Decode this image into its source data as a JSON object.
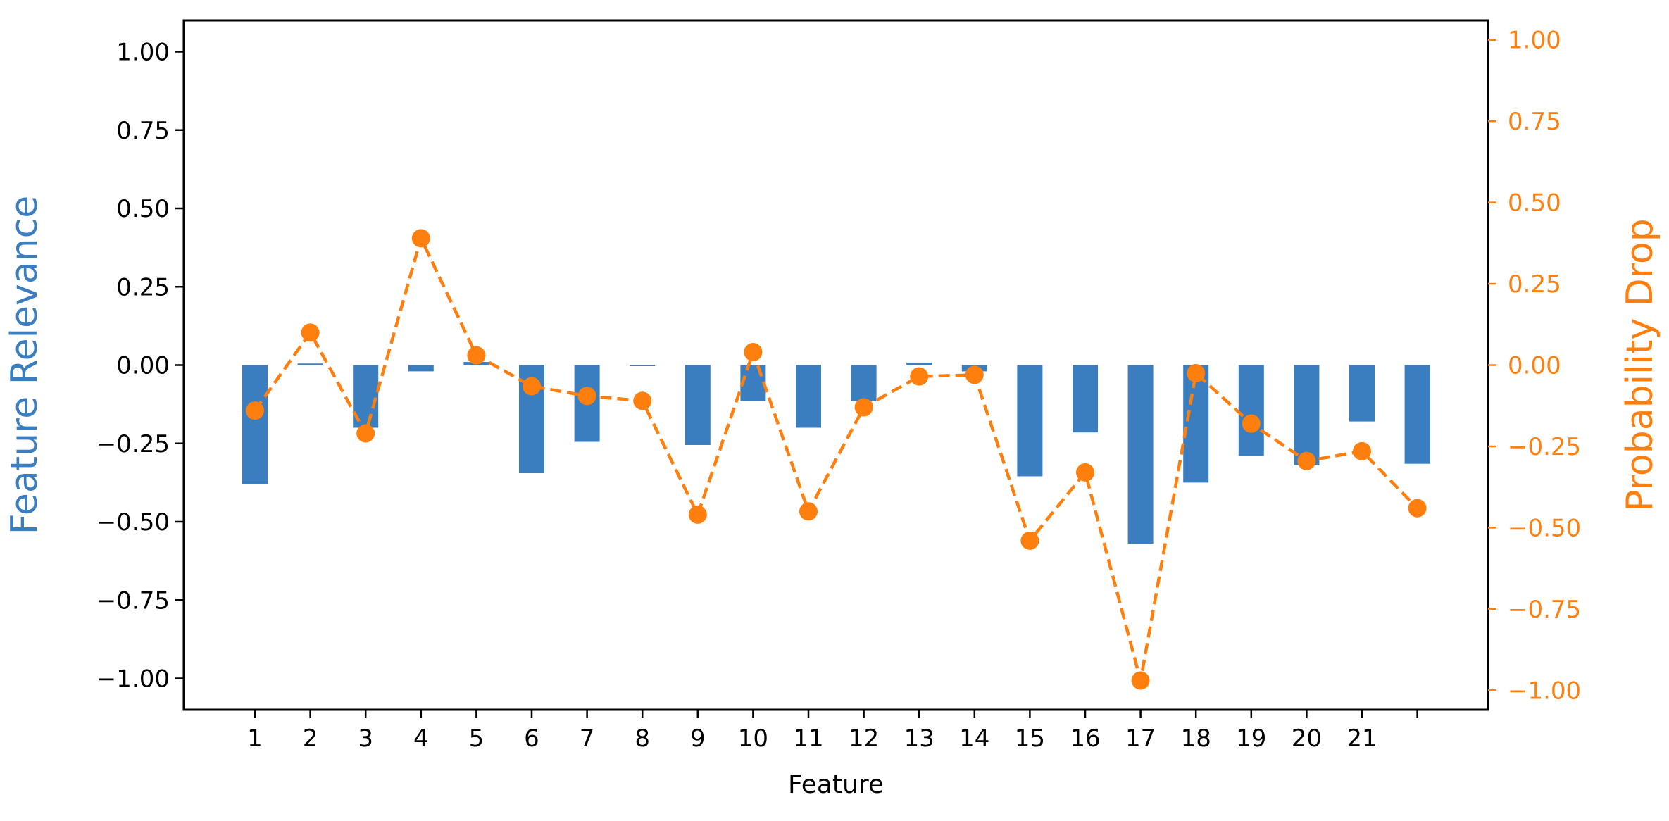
{
  "chart_data": {
    "type": "bar",
    "xlabel": "Feature",
    "ylabel_left": "Feature Relevance",
    "ylabel_right": "Probability Drop",
    "ylim_left": [
      -1.1,
      1.1
    ],
    "ylim_right": [
      -1.06,
      1.06
    ],
    "left_ticks": [
      1.0,
      0.75,
      0.5,
      0.25,
      0.0,
      -0.25,
      -0.5,
      -0.75,
      -1.0
    ],
    "left_tick_labels": [
      "1.00",
      "0.75",
      "0.50",
      "0.25",
      "0.00",
      "−0.25",
      "−0.50",
      "−0.75",
      "−1.00"
    ],
    "right_ticks": [
      1.0,
      0.75,
      0.5,
      0.25,
      0.0,
      -0.25,
      -0.5,
      -0.75,
      -1.0
    ],
    "right_tick_labels": [
      "1.00",
      "0.75",
      "0.50",
      "0.25",
      "0.00",
      "−0.25",
      "−0.50",
      "−0.75",
      "−1.00"
    ],
    "categories": [
      "1",
      "2",
      "3",
      "4",
      "5",
      "6",
      "7",
      "8",
      "9",
      "10",
      "11",
      "12",
      "13",
      "14",
      "15",
      "16",
      "17",
      "18",
      "19",
      "20",
      "21",
      ""
    ],
    "series": [
      {
        "axis": "left",
        "kind": "bar",
        "color": "#3a7ebf",
        "values": [
          -0.38,
          0.005,
          -0.2,
          -0.02,
          0.01,
          -0.345,
          -0.245,
          -0.003,
          -0.255,
          -0.115,
          -0.2,
          -0.115,
          0.008,
          -0.02,
          -0.355,
          -0.215,
          -0.57,
          -0.375,
          -0.29,
          -0.32,
          -0.18,
          -0.315
        ]
      },
      {
        "axis": "right",
        "kind": "line",
        "style": "dashed",
        "marker": "circle",
        "color": "#ff7f0e",
        "values": [
          -0.14,
          0.1,
          -0.21,
          0.39,
          0.03,
          -0.065,
          -0.095,
          -0.11,
          -0.46,
          0.04,
          -0.45,
          -0.13,
          -0.035,
          -0.03,
          -0.54,
          -0.33,
          -0.97,
          -0.025,
          -0.18,
          -0.295,
          -0.265,
          -0.44
        ]
      }
    ],
    "grid": false,
    "colors": {
      "left_axis_title": "#3a7ebf",
      "right_axis": "#ff7f0e",
      "frame": "#000000"
    }
  }
}
